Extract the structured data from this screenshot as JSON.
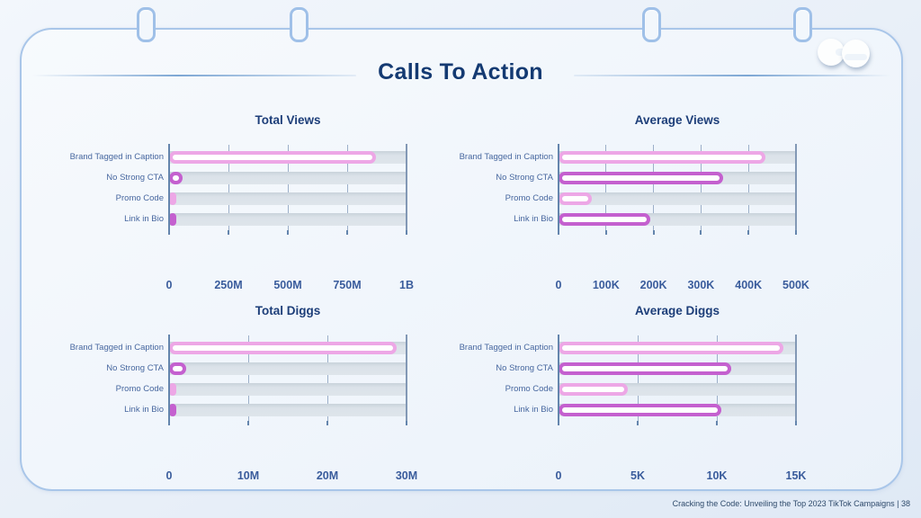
{
  "page": {
    "title": "Calls To Action",
    "footer": "Cracking the Code: Unveiling the Top 2023 TikTok Campaigns |  38"
  },
  "colors": {
    "bar_light_pink": "#eda7e6",
    "bar_magenta": "#c460cf",
    "track_gray": "#dbe2e9",
    "title_navy": "#143a72",
    "chart_title_blue": "#1d3e79",
    "category_label_blue": "#47679f",
    "tick_label_blue": "#3a5c9c",
    "card_border_blue": "#a9c6e9"
  },
  "chart_data": [
    {
      "type": "bar",
      "orientation": "horizontal",
      "title": "Total Views",
      "categories": [
        "Brand Tagged in Caption",
        "No Strong CTA",
        "Promo Code",
        "Link in Bio"
      ],
      "values": [
        870000000,
        55000000,
        10000000,
        16000000
      ],
      "bar_colors": [
        "#eda7e6",
        "#c460cf",
        "#eda7e6",
        "#c460cf"
      ],
      "xlim": [
        0,
        1000000000
      ],
      "xticks": [
        "0",
        "250M",
        "500M",
        "750M",
        "1B"
      ],
      "grid": true,
      "legend": false
    },
    {
      "type": "bar",
      "orientation": "horizontal",
      "title": "Average Views",
      "categories": [
        "Brand Tagged in Caption",
        "No Strong CTA",
        "Promo Code",
        "Link in Bio"
      ],
      "values": [
        435000,
        347000,
        71000,
        193000
      ],
      "bar_colors": [
        "#eda7e6",
        "#c460cf",
        "#eda7e6",
        "#c460cf"
      ],
      "xlim": [
        0,
        500000
      ],
      "xticks": [
        "0",
        "100K",
        "200K",
        "300K",
        "400K",
        "500K"
      ],
      "grid": true,
      "legend": false
    },
    {
      "type": "bar",
      "orientation": "horizontal",
      "title": "Total Diggs",
      "categories": [
        "Brand Tagged in Caption",
        "No Strong CTA",
        "Promo Code",
        "Link in Bio"
      ],
      "values": [
        28700000,
        2200000,
        400000,
        800000
      ],
      "bar_colors": [
        "#eda7e6",
        "#c460cf",
        "#eda7e6",
        "#c460cf"
      ],
      "xlim": [
        0,
        30000000
      ],
      "xticks": [
        "0",
        "10M",
        "20M",
        "30M"
      ],
      "grid": true,
      "legend": false
    },
    {
      "type": "bar",
      "orientation": "horizontal",
      "title": "Average Diggs",
      "categories": [
        "Brand Tagged in Caption",
        "No Strong CTA",
        "Promo Code",
        "Link in Bio"
      ],
      "values": [
        14200,
        10900,
        4400,
        10300
      ],
      "bar_colors": [
        "#eda7e6",
        "#c460cf",
        "#eda7e6",
        "#c460cf"
      ],
      "xlim": [
        0,
        15000
      ],
      "xticks": [
        "0",
        "5K",
        "10K",
        "15K"
      ],
      "grid": true,
      "legend": false
    }
  ]
}
